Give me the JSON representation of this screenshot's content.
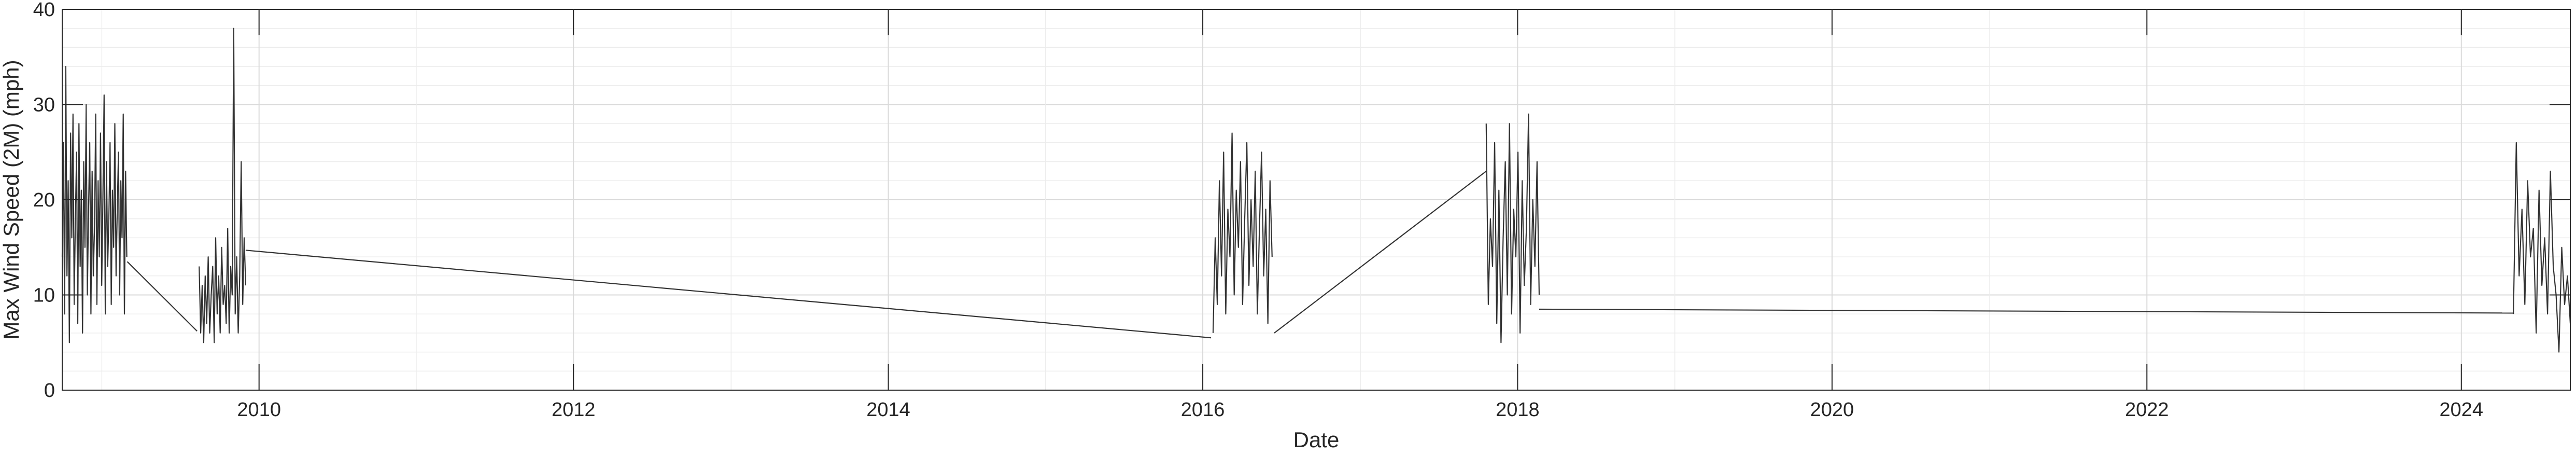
{
  "chart_data": {
    "type": "line",
    "title": "",
    "xlabel": "Date",
    "ylabel": "Max Wind Speed (2M) (mph)",
    "xlim": [
      "2008-10-01",
      "2024-09-10"
    ],
    "ylim": [
      0,
      40
    ],
    "x_ticks": [
      "2010",
      "2012",
      "2014",
      "2016",
      "2018",
      "2020",
      "2022",
      "2024"
    ],
    "y_ticks": [
      "0",
      "10",
      "20",
      "30",
      "40"
    ],
    "grid": true,
    "minor_grid": true,
    "line_color": "#333333",
    "series": [
      {
        "segments": [
          {
            "start": "2008-10-01",
            "end": "2009-02-28",
            "values": [
              14,
              26,
              8,
              34,
              12,
              22,
              5,
              27,
              16,
              29,
              9,
              18,
              25,
              7,
              28,
              13,
              21,
              6,
              24,
              15,
              30,
              10,
              19,
              26,
              8,
              23,
              12,
              17,
              29,
              9,
              22,
              14,
              27,
              11,
              20,
              31,
              8,
              24,
              13,
              18,
              26,
              9,
              21,
              15,
              28,
              12,
              19,
              25,
              10,
              22,
              16,
              29,
              8,
              23,
              14
            ]
          },
          {
            "start": "2009-03-01",
            "end": "2009-08-10",
            "values": [
              13.5,
              6.2
            ]
          },
          {
            "start": "2009-08-15",
            "end": "2009-12-01",
            "values": [
              13,
              6,
              11,
              5,
              12,
              7,
              14,
              6,
              10,
              13,
              5,
              16,
              8,
              12,
              6,
              15,
              9,
              11,
              7,
              17,
              6,
              13,
              10,
              38,
              8,
              14,
              6,
              12,
              24,
              9,
              16,
              11
            ]
          },
          {
            "start": "2009-12-01",
            "end": "2016-01-20",
            "values": [
              14.7,
              5.5
            ]
          },
          {
            "start": "2016-01-25",
            "end": "2016-06-10",
            "values": [
              6,
              16,
              9,
              22,
              12,
              25,
              8,
              19,
              14,
              27,
              10,
              21,
              15,
              24,
              9,
              18,
              26,
              11,
              20,
              13,
              23,
              8,
              17,
              25,
              12,
              19,
              7,
              22,
              14
            ]
          },
          {
            "start": "2016-06-15",
            "end": "2017-10-20",
            "values": [
              6,
              23
            ]
          },
          {
            "start": "2017-10-20",
            "end": "2018-02-20",
            "values": [
              28,
              9,
              18,
              13,
              26,
              7,
              21,
              5,
              16,
              24,
              10,
              28,
              8,
              19,
              14,
              25,
              6,
              22,
              11,
              17,
              29,
              9,
              20,
              13,
              24,
              10
            ]
          },
          {
            "start": "2018-02-20",
            "end": "2024-05-01",
            "values": [
              8.5,
              8.1
            ]
          },
          {
            "start": "2024-05-01",
            "end": "2024-09-10",
            "values": [
              8,
              26,
              12,
              19,
              9,
              22,
              14,
              17,
              6,
              21,
              11,
              16,
              8,
              23,
              13,
              10,
              4,
              15,
              9,
              12,
              7
            ]
          }
        ]
      }
    ]
  }
}
